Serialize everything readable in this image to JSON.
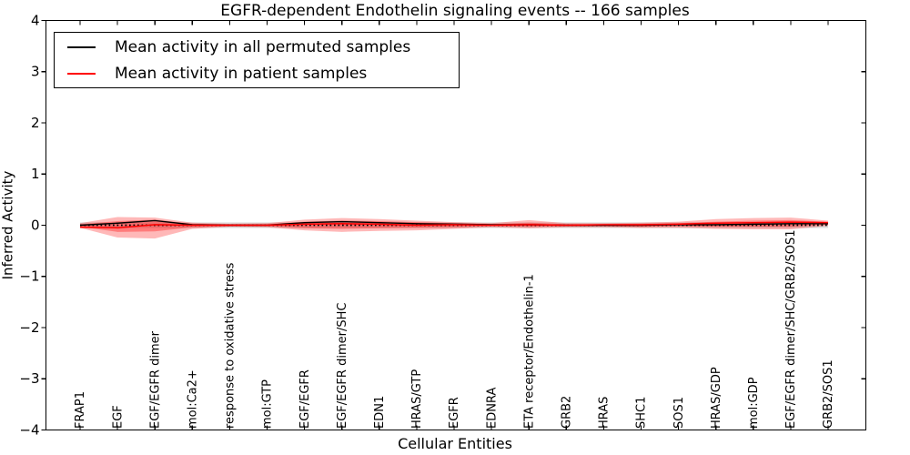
{
  "chart_data": {
    "type": "line",
    "title": "EGFR-dependent Endothelin signaling events -- 166 samples",
    "xlabel": "Cellular Entities",
    "ylabel": "Inferred Activity",
    "ylim": [
      -4,
      4
    ],
    "yticks": [
      4,
      3,
      2,
      1,
      0,
      -1,
      -2,
      -3,
      -4
    ],
    "ytick_labels": [
      "4",
      "3",
      "2",
      "1",
      "0",
      "−1",
      "−2",
      "−3",
      "−4"
    ],
    "grid": false,
    "legend_position": "upper left",
    "categories": [
      "FRAP1",
      "EGF",
      "EGF/EGFR dimer",
      "mol:Ca2+",
      "response to oxidative stress",
      "mol:GTP",
      "EGF/EGFR",
      "EGF/EGFR dimer/SHC",
      "EDN1",
      "HRAS/GTP",
      "EGFR",
      "EDNRA",
      "ETA receptor/Endothelin-1",
      "GRB2",
      "HRAS",
      "SHC1",
      "SOS1",
      "HRAS/GDP",
      "mol:GDP",
      "EGF/EGFR dimer/SHC/GRB2/SOS1",
      "GRB2/SOS1"
    ],
    "series": [
      {
        "name": "Mean activity in all permuted samples",
        "color": "#000000",
        "values": [
          0.0,
          0.04,
          0.09,
          0.01,
          0.0,
          0.0,
          0.05,
          0.07,
          0.05,
          0.03,
          0.02,
          0.01,
          0.01,
          0.0,
          0.0,
          0.0,
          0.01,
          0.01,
          0.02,
          0.03,
          0.03
        ]
      },
      {
        "name": "Mean activity in patient samples",
        "color": "#ff0000",
        "values": [
          -0.04,
          -0.05,
          0.01,
          0.0,
          0.0,
          0.0,
          0.02,
          0.03,
          0.02,
          0.0,
          0.01,
          0.0,
          0.01,
          0.0,
          0.01,
          0.01,
          0.02,
          0.04,
          0.05,
          0.06,
          0.05
        ]
      }
    ],
    "bands": [
      {
        "name": "permuted-activity-range",
        "color": "#000000",
        "opacity": 0.13,
        "top": 0.055,
        "bottom": -0.055
      },
      {
        "name": "patient-activity-range-outer",
        "color": "#ff0000",
        "opacity": 0.28,
        "top": [
          0.04,
          0.16,
          0.15,
          0.05,
          0.03,
          0.04,
          0.11,
          0.14,
          0.12,
          0.09,
          0.06,
          0.04,
          0.1,
          0.04,
          0.04,
          0.05,
          0.07,
          0.12,
          0.14,
          0.15,
          0.09
        ],
        "bottom": [
          -0.05,
          -0.24,
          -0.26,
          -0.07,
          -0.03,
          -0.04,
          -0.1,
          -0.13,
          -0.11,
          -0.1,
          -0.07,
          -0.04,
          -0.06,
          -0.04,
          -0.04,
          -0.05,
          -0.05,
          -0.07,
          -0.08,
          -0.08,
          -0.01
        ]
      },
      {
        "name": "patient-activity-range-inner",
        "color": "#ff0000",
        "opacity": 0.33,
        "top": [
          0.02,
          0.08,
          0.11,
          0.03,
          0.02,
          0.02,
          0.07,
          0.09,
          0.08,
          0.06,
          0.04,
          0.02,
          0.05,
          0.02,
          0.02,
          0.03,
          0.04,
          0.07,
          0.09,
          0.1,
          0.07
        ],
        "bottom": [
          -0.03,
          -0.13,
          -0.12,
          -0.04,
          -0.02,
          -0.02,
          -0.06,
          -0.07,
          -0.06,
          -0.05,
          -0.04,
          -0.02,
          -0.03,
          -0.02,
          -0.02,
          -0.03,
          -0.02,
          -0.03,
          -0.03,
          -0.03,
          0.01
        ]
      }
    ],
    "zero_line": {
      "y": 0,
      "style": "dotted",
      "color": "#000000"
    }
  }
}
